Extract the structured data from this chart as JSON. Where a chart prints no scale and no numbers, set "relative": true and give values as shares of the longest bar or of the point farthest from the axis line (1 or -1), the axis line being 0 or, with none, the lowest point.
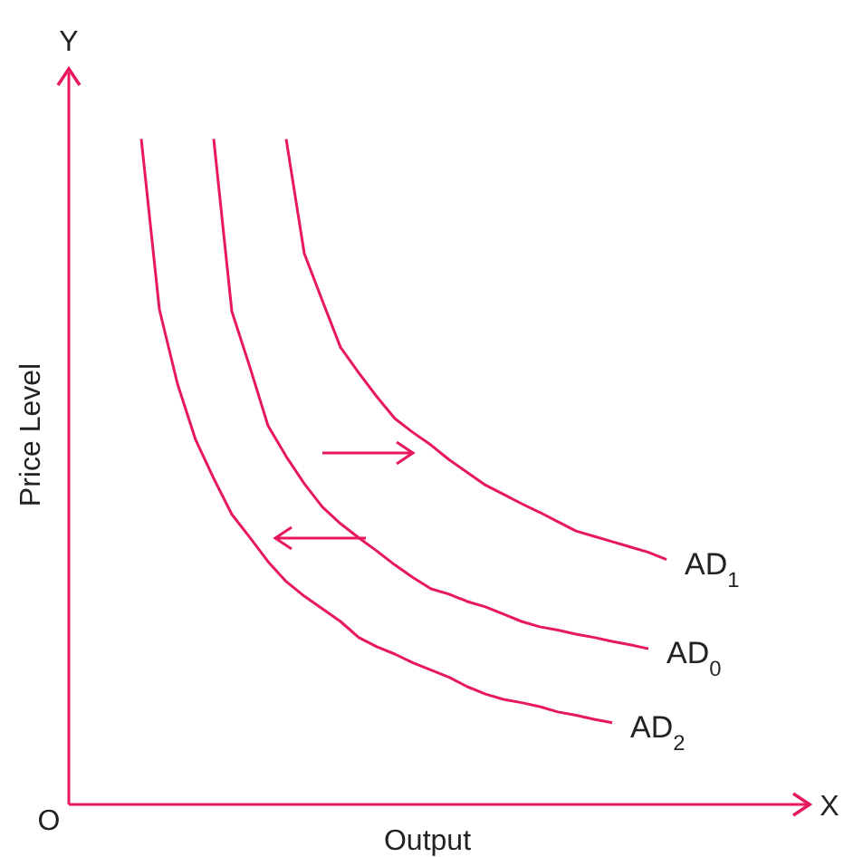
{
  "chart_data": {
    "type": "line",
    "relative": true,
    "xlabel": "Output",
    "ylabel": "Price Level",
    "annotations": [
      "Y",
      "X",
      "O"
    ],
    "grid": false,
    "legend": false,
    "marker": "none",
    "line_style": "solid",
    "categories": [
      null,
      null,
      null,
      null,
      null,
      null,
      null,
      null,
      null,
      null,
      null,
      null,
      null,
      null,
      null,
      null,
      null,
      null,
      null,
      null,
      null,
      null,
      null,
      null,
      null,
      null,
      null,
      null,
      null,
      null,
      null,
      null,
      null,
      null,
      null,
      null,
      null,
      null,
      null,
      null,
      null
    ],
    "series": [
      {
        "name": "AD$_{1}$",
        "color": "#e8185e",
        "values": [
          null,
          null,
          null,
          null,
          null,
          null,
          null,
          null,
          null,
          null,
          null,
          null,
          1.0,
          0.828,
          0.757,
          0.687,
          0.649,
          0.613,
          0.58,
          0.559,
          0.54,
          0.518,
          0.499,
          0.48,
          0.466,
          0.452,
          0.439,
          0.425,
          0.411,
          0.403,
          0.395,
          0.387,
          0.379,
          0.368,
          null,
          null,
          null,
          null,
          null,
          null,
          null
        ]
      },
      {
        "name": "AD$_{0}$",
        "color": "#e8185e",
        "values": [
          null,
          null,
          null,
          null,
          null,
          null,
          null,
          null,
          1.0,
          0.741,
          0.657,
          0.569,
          0.523,
          0.482,
          0.447,
          0.422,
          0.401,
          0.381,
          0.36,
          0.341,
          0.324,
          0.316,
          0.305,
          0.297,
          0.286,
          0.275,
          0.267,
          0.262,
          0.256,
          0.251,
          0.245,
          0.24,
          0.234,
          null,
          null,
          null,
          null,
          null,
          null,
          null,
          null
        ]
      },
      {
        "name": "AD$_{2}$",
        "color": "#e8185e",
        "values": [
          null,
          null,
          null,
          null,
          1.0,
          0.744,
          0.632,
          0.548,
          0.49,
          0.436,
          0.401,
          0.365,
          0.335,
          0.313,
          0.294,
          0.275,
          0.251,
          0.237,
          0.226,
          0.213,
          0.202,
          0.191,
          0.177,
          0.166,
          0.158,
          0.153,
          0.147,
          0.139,
          0.134,
          0.128,
          0.123,
          null,
          null,
          null,
          null,
          null,
          null,
          null,
          null,
          null,
          null
        ]
      }
    ]
  }
}
